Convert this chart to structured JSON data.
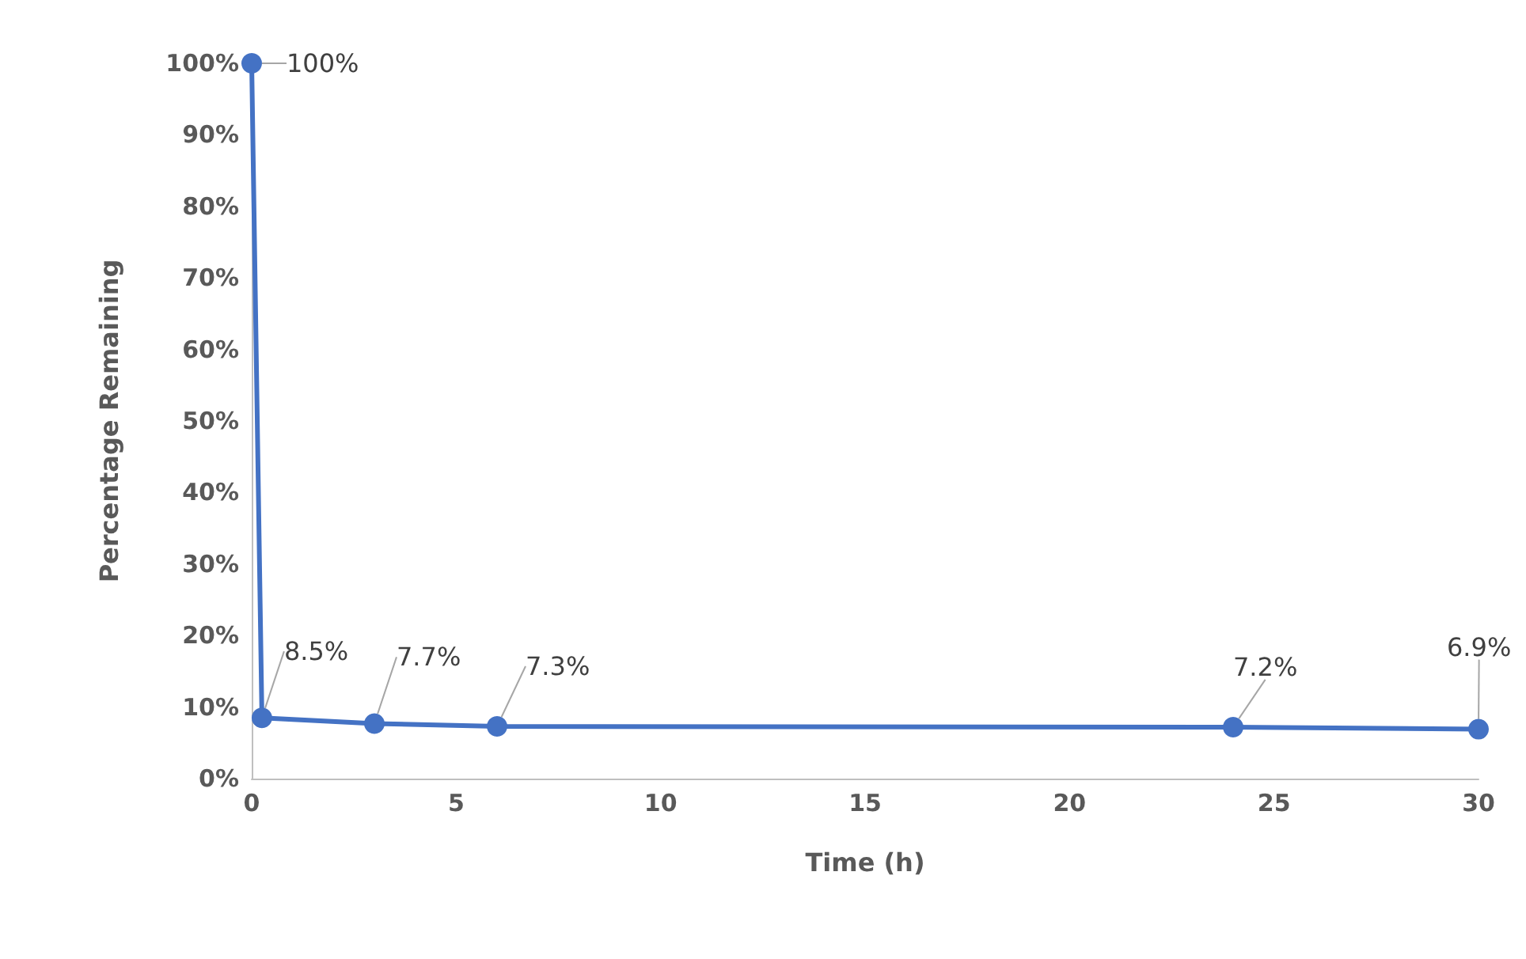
{
  "chart_data": {
    "type": "line",
    "xlabel": "Time (h)",
    "ylabel": "Percentage Remaining",
    "x": [
      0,
      0.25,
      3,
      6,
      24,
      30
    ],
    "series": [
      {
        "color": "#4472c4",
        "values": [
          100,
          8.5,
          7.7,
          7.3,
          7.2,
          6.9
        ],
        "value_labels": [
          "100%",
          "8.5%",
          "7.7%",
          "7.3%",
          "7.2%",
          "6.9%"
        ]
      }
    ],
    "xlim": [
      0,
      30
    ],
    "xticks": [
      0,
      5,
      10,
      15,
      20,
      25,
      30
    ],
    "ylim": [
      0,
      100
    ],
    "yticks": [
      {
        "value": 0,
        "label": "0%"
      },
      {
        "value": 10,
        "label": "10%"
      },
      {
        "value": 20,
        "label": "20%"
      },
      {
        "value": 30,
        "label": "30%"
      },
      {
        "value": 40,
        "label": "40%"
      },
      {
        "value": 50,
        "label": "50%"
      },
      {
        "value": 60,
        "label": "60%"
      },
      {
        "value": 70,
        "label": "70%"
      },
      {
        "value": 80,
        "label": "80%"
      },
      {
        "value": 90,
        "label": "90%"
      },
      {
        "value": 100,
        "label": "100%"
      }
    ],
    "grid": false,
    "marker": "circle",
    "line_style": "solid"
  }
}
